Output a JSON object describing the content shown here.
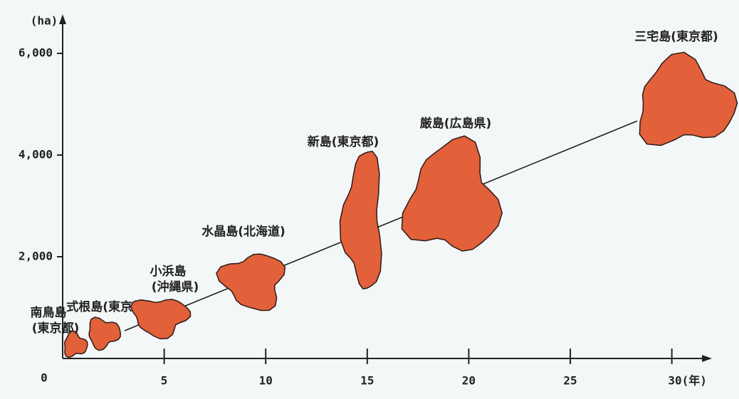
{
  "chart_data": {
    "type": "scatter",
    "y_label": "(ha)",
    "x": [
      0.6,
      2.0,
      4.8,
      9.4,
      14.8,
      19.2,
      30.6
    ],
    "values": [
      266,
      500,
      825,
      1525,
      2700,
      3130,
      5020
    ],
    "labels": [
      [
        "南鳥島",
        "(東京都)"
      ],
      [
        "式根島(東京都)"
      ],
      [
        "小浜島",
        "(沖縄県)"
      ],
      [
        "水晶島(北海道)"
      ],
      [
        "新島(東京都)"
      ],
      [
        "厳島(広島県)"
      ],
      [
        "三宅島(東京都)"
      ]
    ],
    "color": "#e2603a",
    "trend": {
      "x": [
        3.05,
        28.3
      ],
      "values": [
        545,
        4671
      ]
    },
    "xlim": [
      0,
      31.8
    ],
    "ylim": [
      0,
      6630
    ],
    "xticks": [
      5,
      10,
      15,
      20,
      25,
      {
        "value": 30,
        "label": "30(年)"
      }
    ],
    "yticks": [
      0,
      {
        "value": 2000,
        "label": "2,000"
      },
      {
        "value": 4000,
        "label": "4,000"
      },
      {
        "value": 6000,
        "label": "6,000"
      }
    ]
  }
}
